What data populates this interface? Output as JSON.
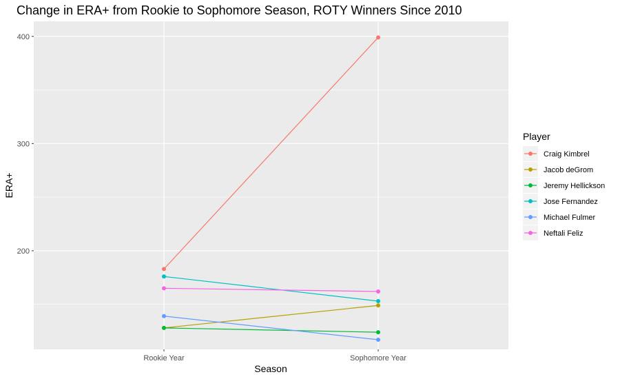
{
  "chart_data": {
    "type": "line",
    "title": "Change in ERA+ from Rookie to Sophomore Season, ROTY Winners Since 2010",
    "xlabel": "Season",
    "ylabel": "ERA+",
    "categories": [
      "Rookie Year",
      "Sophomore Year"
    ],
    "yticks": [
      200,
      300,
      400
    ],
    "ylim": [
      108,
      414
    ],
    "grid": true,
    "legend": {
      "title": "Player",
      "position": "right"
    },
    "series": [
      {
        "name": "Craig Kimbrel",
        "color": "#F8766D",
        "values": [
          183,
          399
        ]
      },
      {
        "name": "Jacob deGrom",
        "color": "#B79F00",
        "values": [
          128,
          149
        ]
      },
      {
        "name": "Jeremy Hellickson",
        "color": "#00BA38",
        "values": [
          128,
          124
        ]
      },
      {
        "name": "Jose Fernandez",
        "color": "#00BFC4",
        "values": [
          176,
          153
        ]
      },
      {
        "name": "Michael Fulmer",
        "color": "#619CFF",
        "values": [
          139,
          117
        ]
      },
      {
        "name": "Neftali Feliz",
        "color": "#F564E3",
        "values": [
          165,
          162
        ]
      }
    ]
  }
}
